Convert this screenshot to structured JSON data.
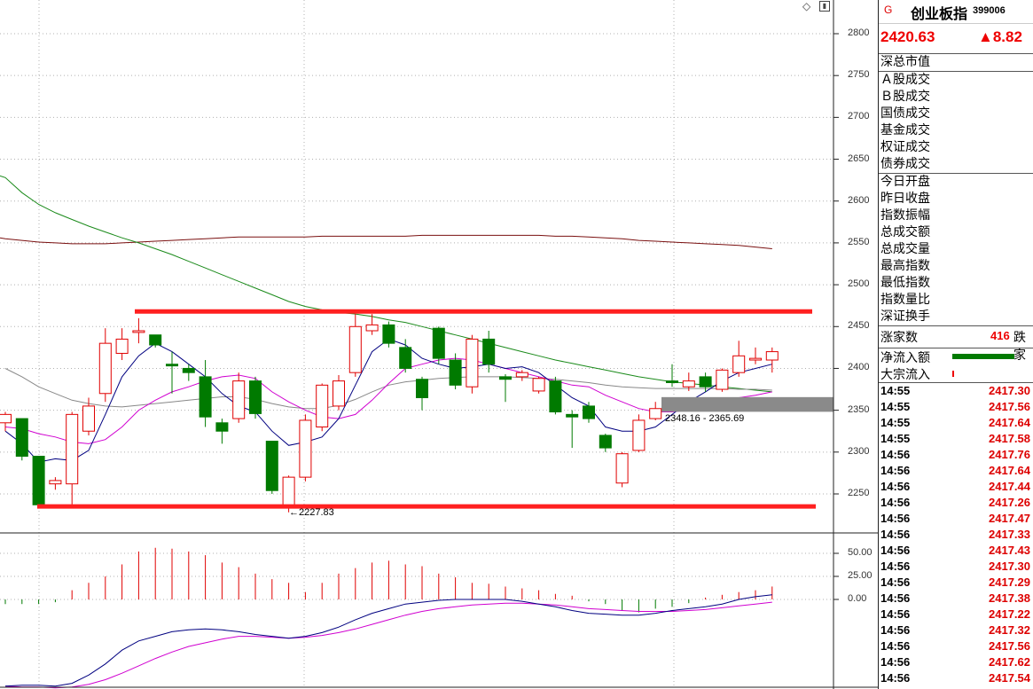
{
  "quote": {
    "flag": "G",
    "name": "创业板指",
    "code": "399006",
    "price": "2420.63",
    "change": "▲8.82"
  },
  "stats_group1": [
    "深总市值"
  ],
  "stats_group2": [
    "Ａ股成交",
    "Ｂ股成交",
    "国债成交",
    "基金成交",
    "权证成交",
    "债券成交"
  ],
  "stats_group3": [
    "今日开盘",
    "昨日收盘",
    "指数振幅",
    "总成交额",
    "总成交量",
    "最高指数",
    "最低指数",
    "指数量比",
    "深证换手"
  ],
  "advance": {
    "label": "涨家数",
    "value": "416",
    "label2": "跌家"
  },
  "flows": {
    "net_inflow_label": "净流入额",
    "block_inflow_label": "大宗流入"
  },
  "ticks": [
    {
      "time": "14:55",
      "price": "2417.30"
    },
    {
      "time": "14:55",
      "price": "2417.56"
    },
    {
      "time": "14:55",
      "price": "2417.64"
    },
    {
      "time": "14:55",
      "price": "2417.58"
    },
    {
      "time": "14:56",
      "price": "2417.76"
    },
    {
      "time": "14:56",
      "price": "2417.64"
    },
    {
      "time": "14:56",
      "price": "2417.44"
    },
    {
      "time": "14:56",
      "price": "2417.26"
    },
    {
      "time": "14:56",
      "price": "2417.47"
    },
    {
      "time": "14:56",
      "price": "2417.33"
    },
    {
      "time": "14:56",
      "price": "2417.43"
    },
    {
      "time": "14:56",
      "price": "2417.30"
    },
    {
      "time": "14:56",
      "price": "2417.29"
    },
    {
      "time": "14:56",
      "price": "2417.38"
    },
    {
      "time": "14:56",
      "price": "2417.22"
    },
    {
      "time": "14:56",
      "price": "2417.32"
    },
    {
      "time": "14:56",
      "price": "2417.56"
    },
    {
      "time": "14:56",
      "price": "2417.62"
    },
    {
      "time": "14:56",
      "price": "2417.54"
    }
  ],
  "price_axis": [
    "2800",
    "2750",
    "2700",
    "2650",
    "2600",
    "2550",
    "2500",
    "2450",
    "2400",
    "2350",
    "2300",
    "2250"
  ],
  "indicator_axis": [
    "50.00",
    "25.00",
    "0.00"
  ],
  "annotations": {
    "low_marker": "←2227.83",
    "range_label": "2348.16 - 2365.69"
  },
  "colors": {
    "up": "#e00000",
    "down": "#007a00",
    "support_line": "#ff2020",
    "ma_fast": "#000080",
    "ma_mid": "#d000d0",
    "ma_slow": "#888888",
    "ma_60": "#1a8a1a",
    "ma_250": "#7a1010"
  },
  "chart_data": {
    "type": "candlestick",
    "ylim": [
      2210,
      2820
    ],
    "candles": [
      {
        "o": 2335,
        "h": 2348,
        "c": 2345,
        "l": 2325
      },
      {
        "o": 2340,
        "h": 2340,
        "c": 2295,
        "l": 2290
      },
      {
        "o": 2295,
        "h": 2295,
        "c": 2237,
        "l": 2235
      },
      {
        "o": 2262,
        "h": 2270,
        "c": 2266,
        "l": 2255
      },
      {
        "o": 2262,
        "h": 2348,
        "c": 2345,
        "l": 2237
      },
      {
        "o": 2325,
        "h": 2365,
        "c": 2355,
        "l": 2320
      },
      {
        "o": 2370,
        "h": 2448,
        "c": 2430,
        "l": 2360
      },
      {
        "o": 2418,
        "h": 2448,
        "c": 2435,
        "l": 2410
      },
      {
        "o": 2443,
        "h": 2460,
        "c": 2445,
        "l": 2430
      },
      {
        "o": 2440,
        "h": 2440,
        "c": 2428,
        "l": 2425
      },
      {
        "o": 2405,
        "h": 2420,
        "c": 2403,
        "l": 2370
      },
      {
        "o": 2400,
        "h": 2405,
        "c": 2395,
        "l": 2385
      },
      {
        "o": 2390,
        "h": 2410,
        "c": 2342,
        "l": 2330
      },
      {
        "o": 2335,
        "h": 2340,
        "c": 2325,
        "l": 2310
      },
      {
        "o": 2340,
        "h": 2395,
        "c": 2385,
        "l": 2335
      },
      {
        "o": 2385,
        "h": 2390,
        "c": 2346,
        "l": 2340
      },
      {
        "o": 2313,
        "h": 2313,
        "c": 2254,
        "l": 2250
      },
      {
        "o": 2236,
        "h": 2272,
        "c": 2270,
        "l": 2228
      },
      {
        "o": 2270,
        "h": 2345,
        "c": 2338,
        "l": 2265
      },
      {
        "o": 2330,
        "h": 2382,
        "c": 2380,
        "l": 2325
      },
      {
        "o": 2355,
        "h": 2392,
        "c": 2385,
        "l": 2350
      },
      {
        "o": 2395,
        "h": 2465,
        "c": 2450,
        "l": 2390
      },
      {
        "o": 2445,
        "h": 2465,
        "c": 2452,
        "l": 2440
      },
      {
        "o": 2452,
        "h": 2456,
        "c": 2430,
        "l": 2425
      },
      {
        "o": 2425,
        "h": 2435,
        "c": 2400,
        "l": 2395
      },
      {
        "o": 2387,
        "h": 2390,
        "c": 2365,
        "l": 2350
      },
      {
        "o": 2448,
        "h": 2450,
        "c": 2412,
        "l": 2405
      },
      {
        "o": 2410,
        "h": 2418,
        "c": 2380,
        "l": 2375
      },
      {
        "o": 2378,
        "h": 2440,
        "c": 2435,
        "l": 2370
      },
      {
        "o": 2435,
        "h": 2445,
        "c": 2405,
        "l": 2395
      },
      {
        "o": 2390,
        "h": 2393,
        "c": 2387,
        "l": 2360
      },
      {
        "o": 2390,
        "h": 2398,
        "c": 2395,
        "l": 2385
      },
      {
        "o": 2373,
        "h": 2390,
        "c": 2388,
        "l": 2370
      },
      {
        "o": 2385,
        "h": 2390,
        "c": 2348,
        "l": 2345
      },
      {
        "o": 2345,
        "h": 2350,
        "c": 2342,
        "l": 2305
      },
      {
        "o": 2355,
        "h": 2360,
        "c": 2340,
        "l": 2335
      },
      {
        "o": 2320,
        "h": 2322,
        "c": 2305,
        "l": 2300
      },
      {
        "o": 2263,
        "h": 2300,
        "c": 2298,
        "l": 2258
      },
      {
        "o": 2302,
        "h": 2345,
        "c": 2338,
        "l": 2300
      },
      {
        "o": 2340,
        "h": 2360,
        "c": 2352,
        "l": 2338
      },
      {
        "o": 2385,
        "h": 2405,
        "c": 2383,
        "l": 2378
      },
      {
        "o": 2378,
        "h": 2395,
        "c": 2385,
        "l": 2373
      },
      {
        "o": 2390,
        "h": 2395,
        "c": 2378,
        "l": 2372
      },
      {
        "o": 2375,
        "h": 2400,
        "c": 2398,
        "l": 2372
      },
      {
        "o": 2395,
        "h": 2433,
        "c": 2415,
        "l": 2390
      },
      {
        "o": 2410,
        "h": 2425,
        "c": 2412,
        "l": 2405
      },
      {
        "o": 2410,
        "h": 2425,
        "c": 2420,
        "l": 2395
      }
    ],
    "ma5": [
      2325,
      2310,
      2288,
      2292,
      2290,
      2302,
      2345,
      2390,
      2415,
      2430,
      2420,
      2405,
      2390,
      2370,
      2355,
      2348,
      2325,
      2308,
      2312,
      2318,
      2340,
      2380,
      2420,
      2435,
      2428,
      2412,
      2405,
      2400,
      2402,
      2405,
      2400,
      2402,
      2395,
      2380,
      2365,
      2355,
      2330,
      2325,
      2325,
      2330,
      2345,
      2360,
      2372,
      2385,
      2395,
      2400,
      2405
    ],
    "ma10": [
      2330,
      2328,
      2322,
      2318,
      2312,
      2310,
      2315,
      2330,
      2350,
      2362,
      2372,
      2378,
      2385,
      2390,
      2392,
      2388,
      2372,
      2360,
      2350,
      2342,
      2340,
      2345,
      2362,
      2382,
      2400,
      2405,
      2410,
      2412,
      2410,
      2405,
      2400,
      2395,
      2390,
      2385,
      2380,
      2378,
      2368,
      2360,
      2352,
      2348,
      2348,
      2350,
      2355,
      2360,
      2365,
      2368,
      2372
    ],
    "ma20": [
      2400,
      2390,
      2378,
      2370,
      2362,
      2358,
      2355,
      2354,
      2356,
      2358,
      2360,
      2362,
      2364,
      2366,
      2366,
      2363,
      2358,
      2354,
      2352,
      2352,
      2356,
      2363,
      2372,
      2380,
      2384,
      2386,
      2388,
      2389,
      2390,
      2390,
      2390,
      2389,
      2388,
      2387,
      2385,
      2383,
      2380,
      2378,
      2377,
      2376,
      2376,
      2376,
      2376,
      2376,
      2375,
      2375,
      2374
    ],
    "ma60": [
      2628,
      2610,
      2596,
      2586,
      2578,
      2570,
      2563,
      2556,
      2550,
      2543,
      2536,
      2528,
      2520,
      2512,
      2504,
      2496,
      2488,
      2480,
      2474,
      2470,
      2467,
      2465,
      2462,
      2458,
      2455,
      2450,
      2445,
      2440,
      2435,
      2430,
      2425,
      2420,
      2415,
      2410,
      2406,
      2402,
      2398,
      2394,
      2390,
      2387,
      2384,
      2382,
      2380,
      2378,
      2376,
      2374,
      2372
    ],
    "ma250": [
      2555,
      2553,
      2551,
      2550,
      2549,
      2549,
      2549,
      2550,
      2551,
      2552,
      2553,
      2554,
      2555,
      2556,
      2557,
      2557,
      2557,
      2557,
      2557,
      2558,
      2558,
      2558,
      2558,
      2558,
      2558,
      2559,
      2559,
      2559,
      2559,
      2559,
      2559,
      2559,
      2559,
      2558,
      2558,
      2557,
      2556,
      2555,
      2553,
      2552,
      2551,
      2550,
      2549,
      2548,
      2547,
      2545,
      2543
    ],
    "support_top": 2468,
    "support_bottom": 2235,
    "zone": {
      "low": 2348.16,
      "high": 2365.69
    },
    "indicator": {
      "ylim": [
        -100,
        58
      ],
      "bars": [
        -5,
        -5,
        -5,
        -3,
        10,
        18,
        25,
        38,
        52,
        56,
        55,
        52,
        48,
        40,
        35,
        28,
        22,
        18,
        8,
        18,
        28,
        34,
        40,
        42,
        38,
        36,
        28,
        24,
        18,
        17,
        14,
        12,
        10,
        6,
        4,
        -2,
        -5,
        -12,
        -14,
        -10,
        -8,
        -4,
        2,
        5,
        8,
        10,
        14
      ],
      "diff": [
        -94,
        -93,
        -93,
        -94,
        -91,
        -82,
        -70,
        -55,
        -45,
        -40,
        -35,
        -33,
        -32,
        -33,
        -35,
        -38,
        -40,
        -42,
        -40,
        -36,
        -30,
        -22,
        -15,
        -10,
        -5,
        -3,
        -1,
        0,
        0,
        0,
        0,
        -2,
        -5,
        -8,
        -12,
        -15,
        -16,
        -17,
        -17,
        -15,
        -12,
        -10,
        -8,
        -5,
        0,
        3,
        5
      ],
      "dea": [
        -94,
        -95,
        -95,
        -96,
        -95,
        -92,
        -87,
        -80,
        -72,
        -64,
        -57,
        -51,
        -47,
        -43,
        -40,
        -40,
        -41,
        -42,
        -41,
        -39,
        -36,
        -32,
        -27,
        -22,
        -17,
        -13,
        -10,
        -8,
        -6,
        -5,
        -4,
        -4,
        -5,
        -6,
        -8,
        -10,
        -11,
        -12,
        -13,
        -13,
        -13,
        -12,
        -11,
        -9,
        -7,
        -5,
        -3
      ]
    }
  }
}
